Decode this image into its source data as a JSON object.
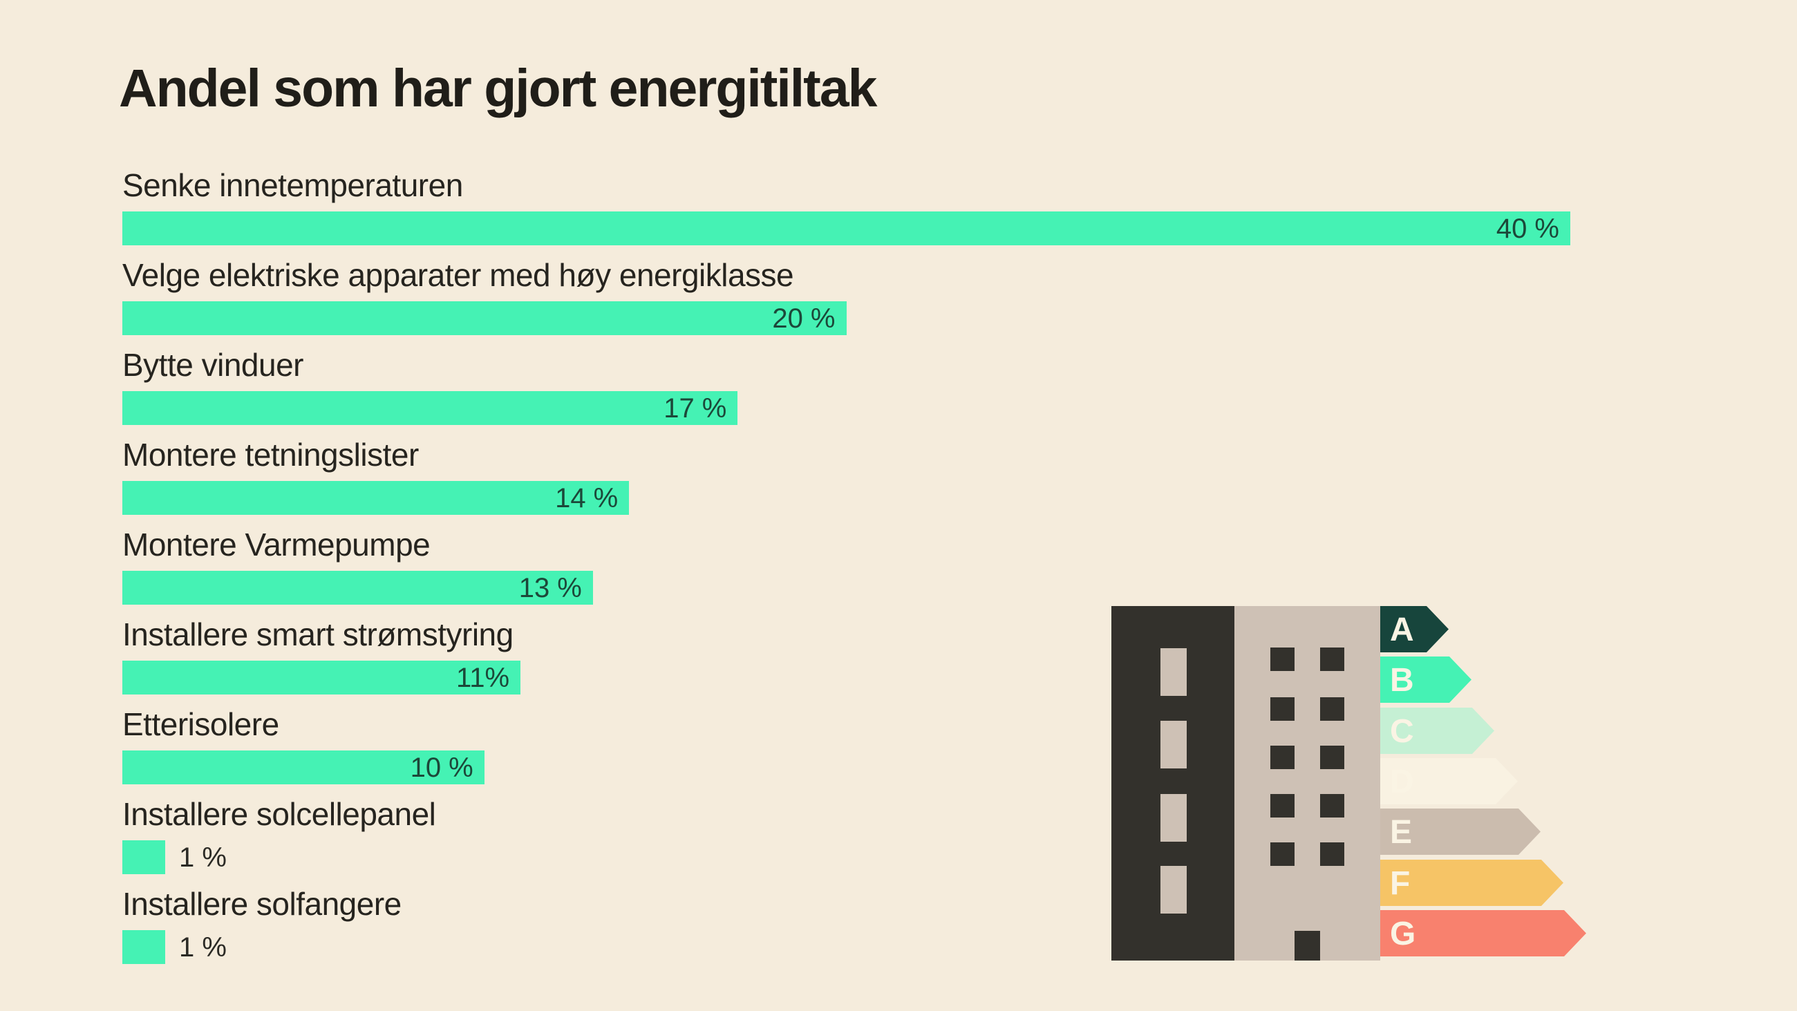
{
  "chart_data": {
    "type": "bar",
    "orientation": "horizontal",
    "title": "Andel som har gjort energitiltak",
    "categories": [
      "Senke innetemperaturen",
      "Velge elektriske apparater med høy energiklasse",
      "Bytte vinduer",
      "Montere tetningslister",
      "Montere Varmepumpe",
      "Installere smart strømstyring",
      "Etterisolere",
      "Installere solcellepanel",
      "Installere solfangere"
    ],
    "values": [
      40,
      20,
      17,
      14,
      13,
      11,
      10,
      1,
      1
    ],
    "value_labels": [
      "40 %",
      "20 %",
      "17 %",
      "14 %",
      "13 %",
      "11%",
      "10 %",
      "1 %",
      "1 %"
    ],
    "xlim": [
      0,
      40
    ],
    "grid": false,
    "legend": false,
    "bar_color": "#45F2B4",
    "value_label_position": "end-of-bar, inside for large bars, outside for 1% bars"
  },
  "energy_scale": {
    "items": [
      {
        "letter": "A",
        "color": "#17453C"
      },
      {
        "letter": "B",
        "color": "#45F2B4"
      },
      {
        "letter": "C",
        "color": "#C5F0D4"
      },
      {
        "letter": "D",
        "color": "#F9F2E2"
      },
      {
        "letter": "E",
        "color": "#CBBCAE"
      },
      {
        "letter": "F",
        "color": "#F6C466"
      },
      {
        "letter": "G",
        "color": "#F8816E"
      }
    ],
    "letter_color": "#FAF4E4"
  },
  "colors": {
    "background": "#F5ECDC",
    "bar": "#45F2B4",
    "value_text_inside": "#1C4839",
    "value_text_outside": "#2B2A25",
    "label_text": "#26241F",
    "title_text": "#201E19",
    "building_dark": "#33312C",
    "building_beige": "#CEC1B5"
  }
}
